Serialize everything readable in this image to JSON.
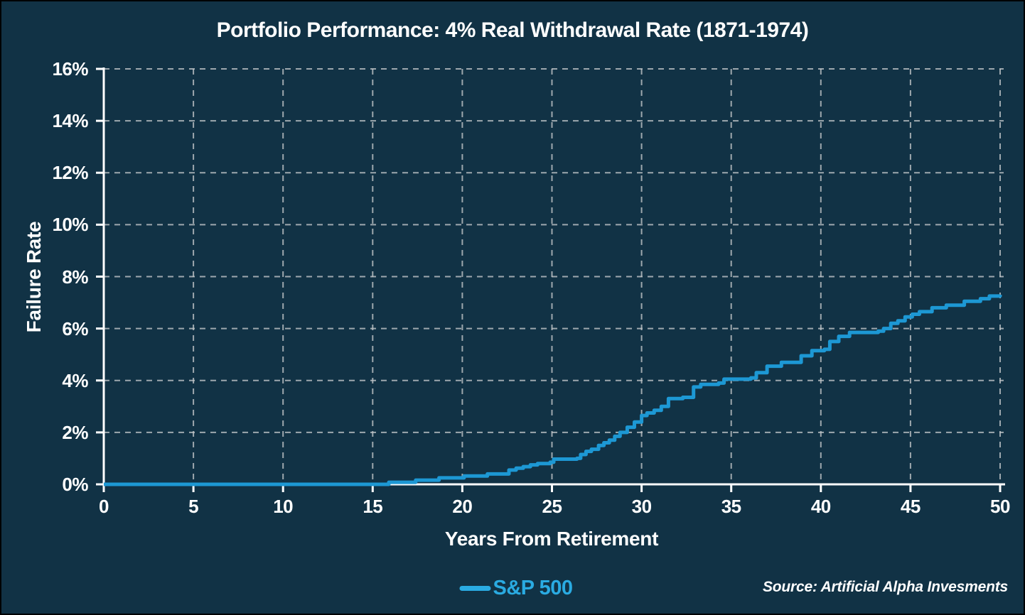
{
  "chart": {
    "title": "Portfolio Performance: 4% Real Withdrawal Rate (1871-1974)",
    "y_axis_label": "Failure Rate",
    "x_axis_label": "Years From Retirement",
    "legend_label": "S&P 500",
    "source": "Source: Artificial Alpha Invesments"
  },
  "colors": {
    "background": "#113245",
    "border": "#000000",
    "text": "#ffffff",
    "grid": "#c2c6c9",
    "axis": "#ffffff",
    "line": "#1d98d4",
    "legend": "#2aabe2"
  },
  "chart_data": {
    "type": "line",
    "title": "Portfolio Performance: 4% Real Withdrawal Rate (1871-1974)",
    "xlabel": "Years From Retirement",
    "ylabel": "Failure Rate",
    "xlim": [
      0,
      50
    ],
    "ylim_percent": [
      0,
      16
    ],
    "x_ticks": [
      0,
      5,
      10,
      15,
      20,
      25,
      30,
      35,
      40,
      45,
      50
    ],
    "x_tick_labels": [
      "0",
      "5",
      "10",
      "15",
      "20",
      "25",
      "30",
      "35",
      "40",
      "45",
      "50"
    ],
    "y_ticks_percent": [
      0,
      2,
      4,
      6,
      8,
      10,
      12,
      14,
      16
    ],
    "y_tick_labels": [
      "0%",
      "2%",
      "4%",
      "6%",
      "8%",
      "10%",
      "12%",
      "14%",
      "16%"
    ],
    "grid": "dashed",
    "legend_position": "bottom-center",
    "series": [
      {
        "name": "S&P 500",
        "color": "#1d98d4",
        "step": true,
        "points_year_failurepct": [
          [
            0,
            0
          ],
          [
            15.8,
            0
          ],
          [
            15.9,
            0.08
          ],
          [
            17.3,
            0.08
          ],
          [
            17.4,
            0.16
          ],
          [
            18.6,
            0.16
          ],
          [
            18.7,
            0.25
          ],
          [
            19.9,
            0.25
          ],
          [
            20.1,
            0.32
          ],
          [
            21.3,
            0.32
          ],
          [
            21.4,
            0.4
          ],
          [
            22.4,
            0.4
          ],
          [
            22.6,
            0.55
          ],
          [
            23.0,
            0.62
          ],
          [
            23.4,
            0.68
          ],
          [
            23.8,
            0.75
          ],
          [
            24.2,
            0.8
          ],
          [
            24.9,
            0.85
          ],
          [
            25.1,
            0.97
          ],
          [
            26.4,
            1.0
          ],
          [
            26.6,
            1.15
          ],
          [
            26.9,
            1.27
          ],
          [
            27.2,
            1.35
          ],
          [
            27.6,
            1.5
          ],
          [
            27.9,
            1.6
          ],
          [
            28.2,
            1.7
          ],
          [
            28.5,
            1.85
          ],
          [
            28.8,
            2.0
          ],
          [
            29.2,
            2.2
          ],
          [
            29.6,
            2.4
          ],
          [
            30.0,
            2.65
          ],
          [
            30.3,
            2.75
          ],
          [
            30.7,
            2.85
          ],
          [
            31.1,
            3.0
          ],
          [
            31.5,
            3.3
          ],
          [
            32.3,
            3.35
          ],
          [
            32.9,
            3.75
          ],
          [
            33.3,
            3.85
          ],
          [
            34.3,
            3.9
          ],
          [
            34.6,
            4.05
          ],
          [
            36.1,
            4.1
          ],
          [
            36.4,
            4.3
          ],
          [
            37.0,
            4.55
          ],
          [
            37.8,
            4.7
          ],
          [
            38.9,
            4.95
          ],
          [
            39.5,
            5.15
          ],
          [
            40.2,
            5.2
          ],
          [
            40.5,
            5.5
          ],
          [
            41.0,
            5.7
          ],
          [
            41.6,
            5.85
          ],
          [
            43.2,
            5.9
          ],
          [
            43.5,
            6.0
          ],
          [
            43.9,
            6.2
          ],
          [
            44.3,
            6.3
          ],
          [
            44.7,
            6.45
          ],
          [
            45.1,
            6.55
          ],
          [
            45.5,
            6.65
          ],
          [
            46.2,
            6.8
          ],
          [
            47.0,
            6.9
          ],
          [
            48.0,
            7.05
          ],
          [
            48.9,
            7.15
          ],
          [
            49.4,
            7.25
          ],
          [
            50,
            7.3
          ]
        ]
      }
    ]
  }
}
